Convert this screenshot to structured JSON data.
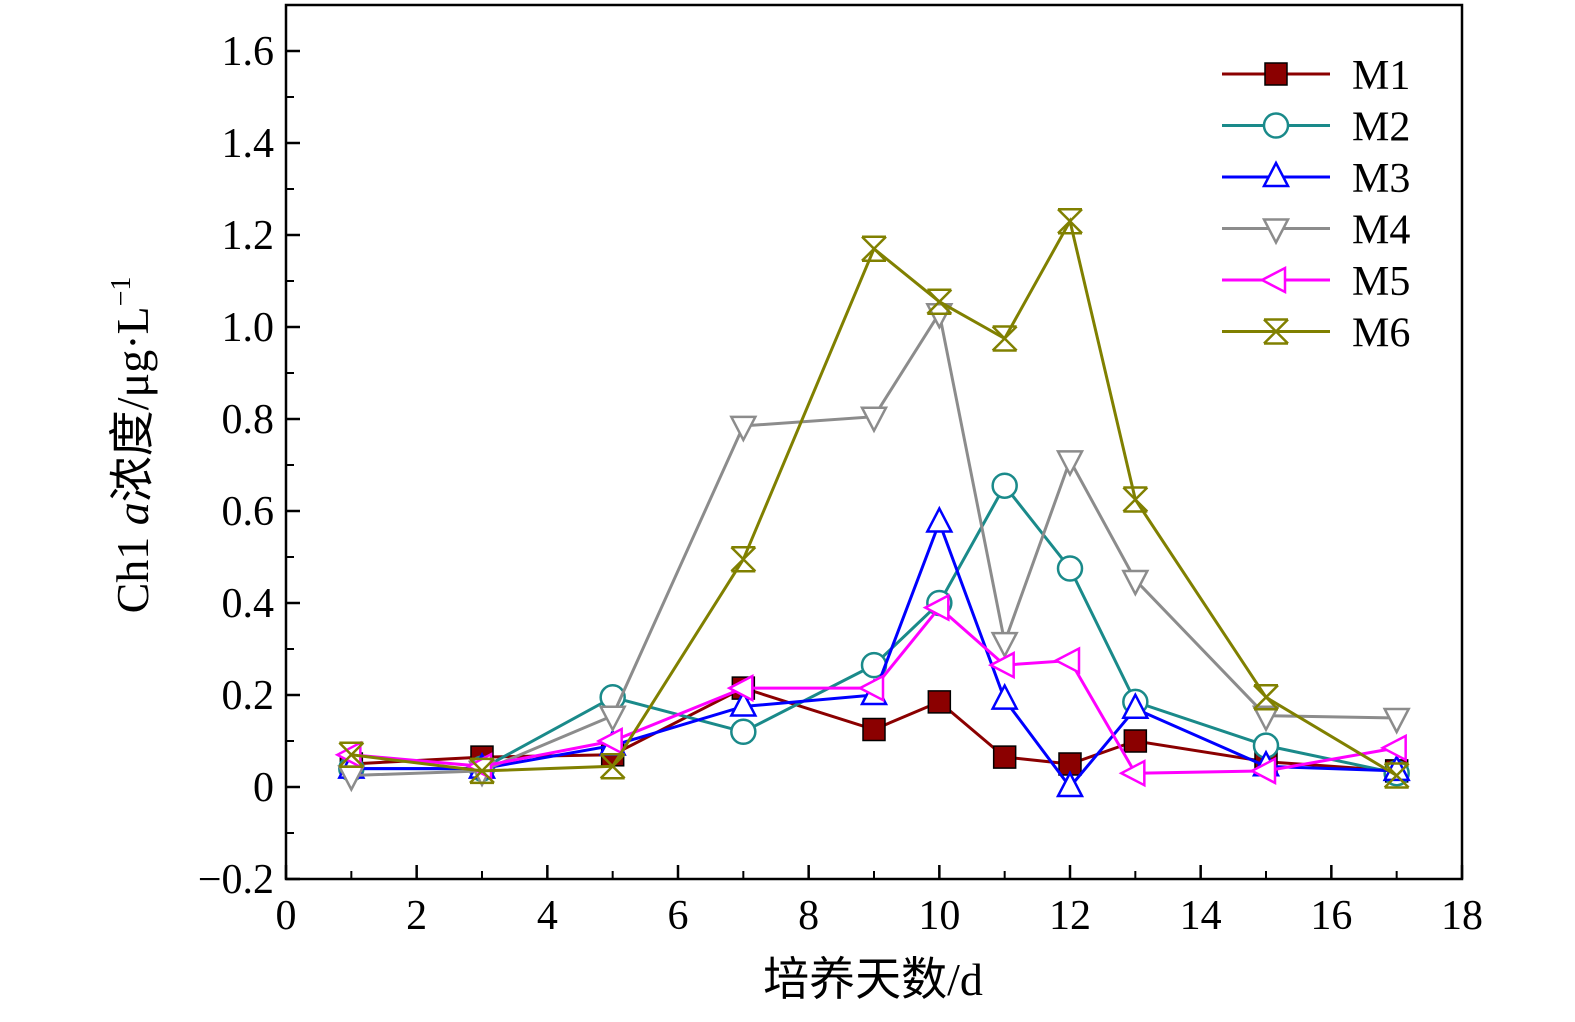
{
  "chart_data": {
    "type": "line",
    "xlabel": "培养天数/d",
    "ylabel": {
      "prefix": "Ch1 ",
      "italic": "a",
      "suffix": "浓度/μg·L",
      "superscript": "−1"
    },
    "xlim": [
      0,
      18
    ],
    "ylim": [
      -0.2,
      1.7
    ],
    "x_ticks": [
      0,
      2,
      4,
      6,
      8,
      10,
      12,
      14,
      16,
      18
    ],
    "x_tick_labels": [
      "0",
      "2",
      "4",
      "6",
      "8",
      "10",
      "12",
      "14",
      "16",
      "18"
    ],
    "y_ticks": [
      -0.2,
      0,
      0.2,
      0.4,
      0.6,
      0.8,
      1.0,
      1.2,
      1.4,
      1.6
    ],
    "y_tick_labels": [
      "−0.2",
      "0",
      "0.2",
      "0.4",
      "0.6",
      "0.8",
      "1.0",
      "1.2",
      "1.4",
      "1.6"
    ],
    "grid": false,
    "legend_position": "top-right",
    "x": [
      1,
      3,
      5,
      7,
      9,
      10,
      11,
      12,
      13,
      15,
      17
    ],
    "series": [
      {
        "name": "M1",
        "color": "#8b0000",
        "marker": "filled-square",
        "values": [
          0.05,
          0.065,
          0.07,
          0.215,
          0.125,
          0.185,
          0.065,
          0.05,
          0.1,
          0.055,
          0.035
        ]
      },
      {
        "name": "M2",
        "color": "#1a8a8a",
        "marker": "open-circle",
        "values": [
          0.04,
          0.04,
          0.195,
          0.12,
          0.265,
          0.4,
          0.655,
          0.475,
          0.185,
          0.09,
          0.03
        ]
      },
      {
        "name": "M3",
        "color": "#0000ff",
        "marker": "open-triangle-up",
        "values": [
          0.04,
          0.04,
          0.09,
          0.175,
          0.2,
          0.575,
          0.19,
          0.0,
          0.17,
          0.045,
          0.035
        ]
      },
      {
        "name": "M4",
        "color": "#8c8c8c",
        "marker": "open-triangle-down",
        "values": [
          0.025,
          0.035,
          0.155,
          0.785,
          0.805,
          1.03,
          0.315,
          0.71,
          0.45,
          0.155,
          0.15
        ]
      },
      {
        "name": "M5",
        "color": "#ff00ff",
        "marker": "open-triangle-left",
        "values": [
          0.07,
          0.045,
          0.1,
          0.215,
          0.215,
          0.39,
          0.265,
          0.275,
          0.03,
          0.035,
          0.085
        ]
      },
      {
        "name": "M6",
        "color": "#808000",
        "marker": "x-cross",
        "values": [
          0.07,
          0.035,
          0.045,
          0.495,
          1.17,
          1.055,
          0.975,
          1.23,
          0.625,
          0.195,
          0.025
        ]
      }
    ]
  }
}
